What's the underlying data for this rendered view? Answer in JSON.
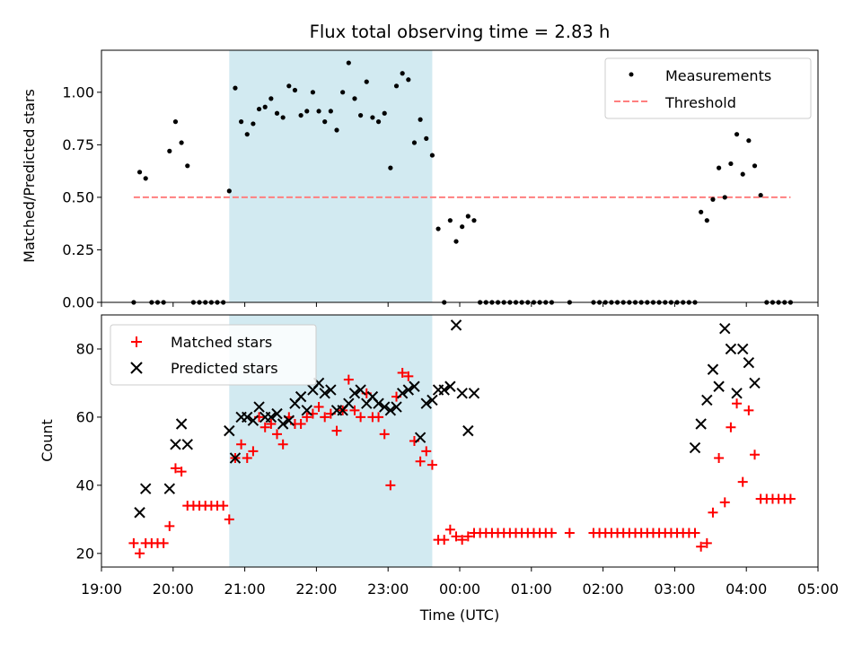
{
  "title": "Flux total observing time = 2.83 h",
  "xlabel": "Time (UTC)",
  "x_ticks": [
    "19:00",
    "20:00",
    "21:00",
    "22:00",
    "23:00",
    "00:00",
    "01:00",
    "02:00",
    "03:00",
    "04:00",
    "05:00"
  ],
  "shaded_window": {
    "start": "20:47",
    "end": "23:37",
    "color": "#add8e6"
  },
  "chart_data": [
    {
      "type": "scatter",
      "ylabel": "Matched/Predicted stars",
      "ylim": [
        0,
        1.2
      ],
      "yticks": [
        "0.00",
        "0.25",
        "0.50",
        "0.75",
        "1.00"
      ],
      "legend_position": "top-right",
      "grid": false,
      "series": [
        {
          "name": "Measurements",
          "marker": "dot",
          "color": "#000000",
          "x": [
            "19:27",
            "19:32",
            "19:37",
            "19:42",
            "19:47",
            "19:52",
            "19:57",
            "20:02",
            "20:07",
            "20:12",
            "20:17",
            "20:22",
            "20:27",
            "20:32",
            "20:37",
            "20:42",
            "20:47",
            "20:52",
            "20:57",
            "21:02",
            "21:07",
            "21:12",
            "21:17",
            "21:22",
            "21:27",
            "21:32",
            "21:37",
            "21:42",
            "21:47",
            "21:52",
            "21:57",
            "22:02",
            "22:07",
            "22:12",
            "22:17",
            "22:22",
            "22:27",
            "22:32",
            "22:37",
            "22:42",
            "22:47",
            "22:52",
            "22:57",
            "23:02",
            "23:07",
            "23:12",
            "23:17",
            "23:22",
            "23:27",
            "23:32",
            "23:37",
            "23:42",
            "23:47",
            "23:52",
            "23:57",
            "00:02",
            "00:07",
            "00:12",
            "00:17",
            "00:22",
            "00:27",
            "00:32",
            "00:37",
            "00:42",
            "00:47",
            "00:52",
            "00:57",
            "01:02",
            "01:07",
            "01:12",
            "01:17",
            "01:32",
            "01:52",
            "01:57",
            "02:02",
            "02:07",
            "02:12",
            "02:17",
            "02:22",
            "02:27",
            "02:32",
            "02:37",
            "02:42",
            "02:47",
            "02:52",
            "02:57",
            "03:02",
            "03:07",
            "03:12",
            "03:17",
            "03:22",
            "03:27",
            "03:32",
            "03:37",
            "03:42",
            "03:47",
            "03:52",
            "03:57",
            "04:02",
            "04:07",
            "04:12",
            "04:17",
            "04:22",
            "04:27",
            "04:32",
            "04:37"
          ],
          "y": [
            0,
            0.62,
            0.59,
            0,
            0,
            0,
            0.72,
            0.86,
            0.76,
            0.65,
            0,
            0,
            0,
            0,
            0,
            0,
            0.53,
            1.02,
            0.86,
            0.8,
            0.85,
            0.92,
            0.93,
            0.97,
            0.9,
            0.88,
            1.03,
            1.01,
            0.89,
            0.91,
            1.0,
            0.91,
            0.86,
            0.91,
            0.82,
            1.0,
            1.14,
            0.97,
            0.89,
            1.05,
            0.88,
            0.86,
            0.9,
            0.64,
            1.03,
            1.09,
            1.06,
            0.76,
            0.87,
            0.78,
            0.7,
            0.35,
            0,
            0.39,
            0.29,
            0.36,
            0.41,
            0.39,
            0,
            0,
            0,
            0,
            0,
            0,
            0,
            0,
            0,
            0,
            0,
            0,
            0,
            0,
            0,
            0,
            0,
            0,
            0,
            0,
            0,
            0,
            0,
            0,
            0,
            0,
            0,
            0,
            0,
            0,
            0,
            0,
            0.43,
            0.39,
            0.49,
            0.64,
            0.5,
            0.66,
            0.8,
            0.61,
            0.77,
            0.65,
            0.51,
            0,
            0,
            0,
            0,
            0
          ]
        },
        {
          "name": "Threshold",
          "style": "dashed",
          "color": "#ff7f7f",
          "x": [
            "19:27",
            "04:37"
          ],
          "y": [
            0.5,
            0.5
          ]
        }
      ]
    },
    {
      "type": "scatter",
      "ylabel": "Count",
      "ylim": [
        16,
        90
      ],
      "yticks": [
        "20",
        "40",
        "60",
        "80"
      ],
      "legend_position": "top-left",
      "grid": false,
      "series": [
        {
          "name": "Matched stars",
          "marker": "plus",
          "color": "#ff0000",
          "x": [
            "19:27",
            "19:32",
            "19:37",
            "19:42",
            "19:47",
            "19:52",
            "19:57",
            "20:02",
            "20:07",
            "20:12",
            "20:17",
            "20:22",
            "20:27",
            "20:32",
            "20:37",
            "20:42",
            "20:47",
            "20:52",
            "20:57",
            "21:02",
            "21:07",
            "21:12",
            "21:17",
            "21:22",
            "21:27",
            "21:32",
            "21:37",
            "21:42",
            "21:47",
            "21:52",
            "21:57",
            "22:02",
            "22:07",
            "22:12",
            "22:17",
            "22:22",
            "22:27",
            "22:32",
            "22:37",
            "22:42",
            "22:47",
            "22:52",
            "22:57",
            "23:02",
            "23:07",
            "23:12",
            "23:17",
            "23:22",
            "23:27",
            "23:32",
            "23:37",
            "23:42",
            "23:47",
            "23:52",
            "23:57",
            "00:02",
            "00:07",
            "00:12",
            "00:17",
            "00:22",
            "00:27",
            "00:32",
            "00:37",
            "00:42",
            "00:47",
            "00:52",
            "00:57",
            "01:02",
            "01:07",
            "01:12",
            "01:17",
            "01:32",
            "01:52",
            "01:57",
            "02:02",
            "02:07",
            "02:12",
            "02:17",
            "02:22",
            "02:27",
            "02:32",
            "02:37",
            "02:42",
            "02:47",
            "02:52",
            "02:57",
            "03:02",
            "03:07",
            "03:12",
            "03:17",
            "03:22",
            "03:27",
            "03:32",
            "03:37",
            "03:42",
            "03:47",
            "03:52",
            "03:57",
            "04:02",
            "04:07",
            "04:12",
            "04:17",
            "04:22",
            "04:27",
            "04:32",
            "04:37"
          ],
          "y": [
            23,
            20,
            23,
            23,
            23,
            23,
            28,
            45,
            44,
            34,
            34,
            34,
            34,
            34,
            34,
            34,
            30,
            48,
            52,
            48,
            50,
            60,
            57,
            58,
            55,
            52,
            60,
            58,
            58,
            60,
            61,
            63,
            60,
            61,
            56,
            62,
            71,
            62,
            60,
            67,
            60,
            60,
            55,
            40,
            66,
            73,
            72,
            53,
            47,
            50,
            46,
            24,
            24,
            27,
            25,
            24,
            25,
            26,
            26,
            26,
            26,
            26,
            26,
            26,
            26,
            26,
            26,
            26,
            26,
            26,
            26,
            26,
            26,
            26,
            26,
            26,
            26,
            26,
            26,
            26,
            26,
            26,
            26,
            26,
            26,
            26,
            26,
            26,
            26,
            26,
            22,
            23,
            32,
            48,
            35,
            57,
            64,
            41,
            62,
            49,
            36,
            36,
            36,
            36,
            36,
            36
          ]
        },
        {
          "name": "Predicted stars",
          "marker": "x",
          "color": "#000000",
          "x": [
            "19:32",
            "19:37",
            "19:57",
            "20:02",
            "20:07",
            "20:12",
            "20:47",
            "20:52",
            "20:57",
            "21:02",
            "21:07",
            "21:12",
            "21:17",
            "21:22",
            "21:27",
            "21:32",
            "21:37",
            "21:42",
            "21:47",
            "21:52",
            "21:57",
            "22:02",
            "22:07",
            "22:12",
            "22:17",
            "22:22",
            "22:27",
            "22:32",
            "22:37",
            "22:42",
            "22:47",
            "22:52",
            "22:57",
            "23:02",
            "23:07",
            "23:12",
            "23:17",
            "23:22",
            "23:27",
            "23:32",
            "23:37",
            "23:42",
            "23:47",
            "23:52",
            "23:57",
            "00:02",
            "00:07",
            "00:12",
            "03:17",
            "03:22",
            "03:27",
            "03:32",
            "03:37",
            "03:42",
            "03:47",
            "03:52",
            "03:57",
            "04:02",
            "04:07"
          ],
          "y": [
            32,
            39,
            39,
            52,
            58,
            52,
            56,
            48,
            60,
            60,
            59,
            63,
            60,
            60,
            61,
            58,
            59,
            64,
            66,
            62,
            68,
            70,
            67,
            68,
            62,
            62,
            64,
            67,
            68,
            64,
            66,
            64,
            63,
            62,
            63,
            67,
            68,
            69,
            54,
            64,
            65,
            68,
            68,
            69,
            87,
            67,
            56,
            67,
            51,
            58,
            65,
            74,
            69,
            86,
            80,
            67,
            80,
            76,
            70
          ]
        }
      ]
    }
  ]
}
